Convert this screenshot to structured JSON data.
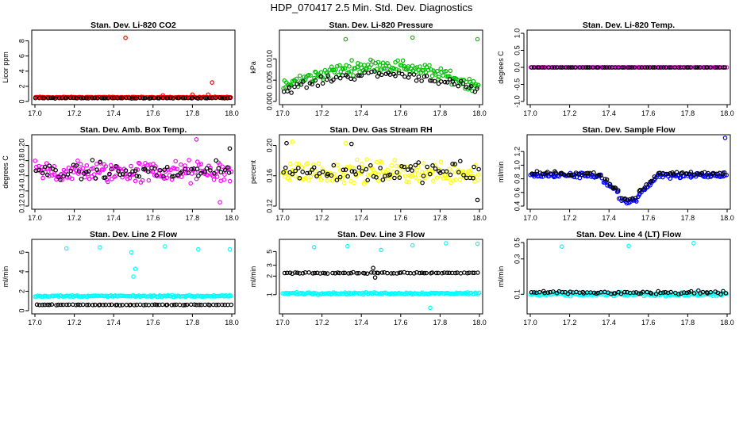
{
  "page": {
    "title": "HDP_070417  2.5 Min. Std. Dev. Diagnostics"
  },
  "chart_data": [
    {
      "type": "scatter",
      "title": "Stan. Dev. Li-820 CO2",
      "ylabel": "Licor ppm",
      "xlim": [
        17.0,
        18.0
      ],
      "ylim": [
        0,
        9
      ],
      "xticks": [
        "17.0",
        "17.2",
        "17.4",
        "17.6",
        "17.8",
        "18.0"
      ],
      "yticks": [
        0,
        2,
        4,
        6,
        8
      ],
      "series": [
        {
          "name": "series-1",
          "color": "#ff0000",
          "base": 0.55,
          "noise": 0.08,
          "outliers": [
            [
              17.46,
              8.4
            ],
            [
              17.9,
              2.5
            ],
            [
              17.88,
              0.9
            ],
            [
              17.8,
              0.9
            ],
            [
              17.65,
              0.8
            ]
          ]
        },
        {
          "name": "series-2",
          "color": "#000000",
          "base": 0.45,
          "noise": 0.06,
          "outliers": []
        }
      ]
    },
    {
      "type": "scatter",
      "title": "Stan. Dev. Li-820 Pressure",
      "ylabel": "kPa",
      "xlim": [
        17.0,
        18.0
      ],
      "ylim": [
        0,
        0.016
      ],
      "xticks": [
        "17.0",
        "17.2",
        "17.4",
        "17.6",
        "17.8",
        "18.0"
      ],
      "yticks": [
        "0.000",
        "0.005",
        "0.010"
      ],
      "ytickvals": [
        0,
        0.005,
        0.01
      ],
      "series": [
        {
          "name": "series-1",
          "color": "#00c000",
          "shape": "arch",
          "base": 0.0035,
          "peak": 0.0085,
          "noise": 0.0022,
          "outliers": [
            [
              17.32,
              0.0146
            ],
            [
              17.66,
              0.015
            ],
            [
              17.99,
              0.0146
            ]
          ]
        },
        {
          "name": "series-2",
          "color": "#000000",
          "shape": "arch",
          "base": 0.0025,
          "peak": 0.0065,
          "noise": 0.0014,
          "outliers": []
        }
      ]
    },
    {
      "type": "scatter",
      "title": "Stan. Dev. Li-820 Temp.",
      "ylabel": "degrees C",
      "xlim": [
        17.0,
        18.0
      ],
      "ylim": [
        -1,
        1
      ],
      "xticks": [
        "17.0",
        "17.2",
        "17.4",
        "17.6",
        "17.8",
        "18.0"
      ],
      "yticks": [
        "-1.0",
        "-0.5",
        "0.0",
        "0.5",
        "1.0"
      ],
      "ytickvals": [
        -1,
        -0.5,
        0,
        0.5,
        1
      ],
      "series": [
        {
          "name": "series-1",
          "color": "#ff00ff",
          "base": 0,
          "noise": 0,
          "outliers": []
        },
        {
          "name": "series-2",
          "color": "#000000",
          "base": 0,
          "noise": 0,
          "outliers": []
        }
      ]
    },
    {
      "type": "scatter",
      "title": "Stan. Dev. Amb. Box Temp.",
      "ylabel": "degrees C",
      "xlim": [
        17.0,
        18.0
      ],
      "ylim": [
        0.12,
        0.21
      ],
      "xticks": [
        "17.0",
        "17.2",
        "17.4",
        "17.6",
        "17.8",
        "18.0"
      ],
      "yticks": [
        "0.12",
        "0.14",
        "0.16",
        "0.18",
        "0.20"
      ],
      "ytickvals": [
        0.12,
        0.14,
        0.16,
        0.18,
        0.2
      ],
      "series": [
        {
          "name": "series-1",
          "color": "#ff00ff",
          "base": 0.165,
          "noise": 0.022,
          "outliers": [
            [
              17.82,
              0.208
            ],
            [
              17.94,
              0.125
            ]
          ]
        },
        {
          "name": "series-2",
          "color": "#000000",
          "base": 0.165,
          "noise": 0.018,
          "outliers": [
            [
              17.99,
              0.196
            ]
          ]
        }
      ]
    },
    {
      "type": "scatter",
      "title": "Stan. Dev. Gas Stream RH",
      "ylabel": "percent",
      "xlim": [
        17.0,
        18.0
      ],
      "ylim": [
        0.12,
        0.21
      ],
      "xticks": [
        "17.0",
        "17.2",
        "17.4",
        "17.6",
        "17.8",
        "18.0"
      ],
      "yticks": [
        "0.12",
        "0.16",
        "0.20"
      ],
      "ytickvals": [
        0.12,
        0.16,
        0.2
      ],
      "series": [
        {
          "name": "series-1",
          "color": "#ffff00",
          "base": 0.165,
          "noise": 0.022,
          "outliers": [
            [
              17.05,
              0.205
            ],
            [
              17.32,
              0.203
            ]
          ]
        },
        {
          "name": "series-2",
          "color": "#000000",
          "base": 0.165,
          "noise": 0.02,
          "outliers": [
            [
              17.02,
              0.203
            ],
            [
              17.35,
              0.202
            ],
            [
              17.99,
              0.128
            ]
          ]
        }
      ]
    },
    {
      "type": "scatter",
      "title": "Stan. Dev. Sample Flow",
      "ylabel": "ml/min",
      "xlim": [
        17.0,
        18.0
      ],
      "ylim": [
        0.4,
        1.4
      ],
      "xticks": [
        "17.0",
        "17.2",
        "17.4",
        "17.6",
        "17.8",
        "18.0"
      ],
      "yticks": [
        "0.4",
        "0.6",
        "0.8",
        "1.0",
        "1.2"
      ],
      "ytickvals": [
        0.4,
        0.6,
        0.8,
        1.0,
        1.2
      ],
      "series": [
        {
          "name": "series-1",
          "color": "#0000ff",
          "shape": "dip",
          "base": 0.85,
          "noise": 0.06,
          "outliers": [
            [
              17.99,
              1.4
            ]
          ]
        },
        {
          "name": "series-2",
          "color": "#000000",
          "shape": "dip",
          "base": 0.88,
          "noise": 0.04,
          "outliers": []
        }
      ]
    },
    {
      "type": "scatter",
      "title": "Stan. Dev. Line 2 Flow",
      "ylabel": "ml/min",
      "xlim": [
        17.0,
        18.0
      ],
      "ylim": [
        0,
        7
      ],
      "xticks": [
        "17.0",
        "17.2",
        "17.4",
        "17.6",
        "17.8",
        "18.0"
      ],
      "yticks": [
        0,
        2,
        4,
        6
      ],
      "series": [
        {
          "name": "series-1",
          "color": "#00ffff",
          "base": 1.5,
          "noise": 0.12,
          "outliers": [
            [
              17.16,
              6.4
            ],
            [
              17.33,
              6.5
            ],
            [
              17.49,
              6.0
            ],
            [
              17.5,
              3.5
            ],
            [
              17.51,
              4.3
            ],
            [
              17.66,
              6.6
            ],
            [
              17.83,
              6.3
            ],
            [
              17.99,
              6.3
            ]
          ]
        },
        {
          "name": "series-2",
          "color": "#000000",
          "base": 0.6,
          "noise": 0.05,
          "outliers": []
        }
      ]
    },
    {
      "type": "scatter",
      "title": "Stan. Dev. Line 3 Flow",
      "ylabel": "ml/min",
      "xlim": [
        17.0,
        18.0
      ],
      "ylim": [
        0.55,
        7
      ],
      "xticks": [
        "17.0",
        "17.2",
        "17.4",
        "17.6",
        "17.8",
        "18.0"
      ],
      "yticks": [
        1,
        2,
        3,
        5
      ],
      "ylog": true,
      "series": [
        {
          "name": "series-1",
          "color": "#00ffff",
          "base": 1.05,
          "noise": 0.06,
          "outliers": [
            [
              17.16,
              5.9
            ],
            [
              17.33,
              6.1
            ],
            [
              17.5,
              5.3
            ],
            [
              17.66,
              6.3
            ],
            [
              17.83,
              6.8
            ],
            [
              17.99,
              6.7
            ],
            [
              17.75,
              0.6
            ]
          ]
        },
        {
          "name": "series-2",
          "color": "#000000",
          "base": 2.25,
          "noise": 0.08,
          "outliers": [
            [
              17.47,
              1.9
            ],
            [
              17.46,
              2.7
            ]
          ]
        }
      ]
    },
    {
      "type": "scatter",
      "title": "Stan. Dev. Line 4 (LT) Flow",
      "ylabel": "ml/min",
      "xlim": [
        17.0,
        18.0
      ],
      "ylim": [
        0.06,
        0.5
      ],
      "xticks": [
        "17.0",
        "17.2",
        "17.4",
        "17.6",
        "17.8",
        "18.0"
      ],
      "yticks": [
        "0.1",
        "0.3",
        "0.5"
      ],
      "ytickvals": [
        0.1,
        0.3,
        0.5
      ],
      "ylog": true,
      "series": [
        {
          "name": "series-1",
          "color": "#00ffff",
          "base": 0.1,
          "noise": 0.008,
          "outliers": [
            [
              17.16,
              0.44
            ],
            [
              17.5,
              0.45
            ],
            [
              17.83,
              0.49
            ]
          ]
        },
        {
          "name": "series-2",
          "color": "#000000",
          "base": 0.105,
          "noise": 0.009,
          "outliers": []
        }
      ]
    }
  ]
}
